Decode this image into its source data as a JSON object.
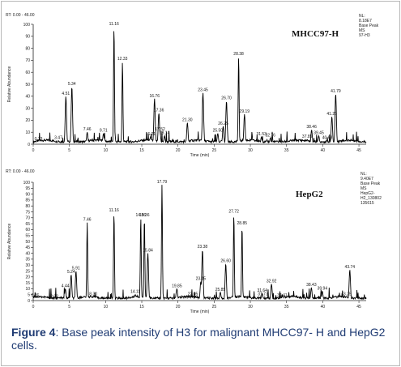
{
  "chart_data": [
    {
      "type": "line",
      "title": "MHCC97-H",
      "range_label": "RT: 0.00 - 46.00",
      "meta": [
        "NL:",
        "8.18E7",
        "Base Peak",
        "MS",
        "97-H3"
      ],
      "xlabel": "Time (min)",
      "ylabel": "Relative Abundance",
      "xlim": [
        0,
        46
      ],
      "ylim": [
        0,
        100
      ],
      "xticks": [
        0,
        5,
        10,
        15,
        20,
        25,
        30,
        35,
        40,
        45
      ],
      "yticks": [
        0,
        10,
        20,
        30,
        40,
        50,
        60,
        70,
        80,
        90,
        100
      ],
      "peaks": [
        {
          "x": 0.73,
          "y": 2
        },
        {
          "x": 3.47,
          "y": 3
        },
        {
          "x": 4.51,
          "y": 40
        },
        {
          "x": 5.34,
          "y": 48
        },
        {
          "x": 7.46,
          "y": 10
        },
        {
          "x": 9.71,
          "y": 9
        },
        {
          "x": 11.16,
          "y": 98
        },
        {
          "x": 12.33,
          "y": 69
        },
        {
          "x": 16.21,
          "y": 6
        },
        {
          "x": 16.76,
          "y": 38
        },
        {
          "x": 17.36,
          "y": 26
        },
        {
          "x": 17.52,
          "y": 10
        },
        {
          "x": 18.14,
          "y": 7
        },
        {
          "x": 21.3,
          "y": 18
        },
        {
          "x": 23.45,
          "y": 43
        },
        {
          "x": 25.5,
          "y": 9
        },
        {
          "x": 26.25,
          "y": 15
        },
        {
          "x": 26.7,
          "y": 36
        },
        {
          "x": 28.38,
          "y": 73
        },
        {
          "x": 29.19,
          "y": 25
        },
        {
          "x": 31.53,
          "y": 6
        },
        {
          "x": 32.76,
          "y": 5
        },
        {
          "x": 37.85,
          "y": 4
        },
        {
          "x": 38.46,
          "y": 12
        },
        {
          "x": 39.45,
          "y": 7
        },
        {
          "x": 40.63,
          "y": 3
        },
        {
          "x": 41.26,
          "y": 23
        },
        {
          "x": 41.79,
          "y": 42
        }
      ]
    },
    {
      "type": "line",
      "title": "HepG2",
      "range_label": "RT: 0.00 - 46.00",
      "meta": [
        "NL:",
        "9.40E7",
        "Base Peak",
        "MS",
        "HepG2-",
        "H2_130802",
        "135615"
      ],
      "xlabel": "Time (min)",
      "ylabel": "Relative Abundance",
      "xlim": [
        0,
        46
      ],
      "ylim": [
        0,
        100
      ],
      "xticks": [
        0,
        5,
        10,
        15,
        20,
        25,
        30,
        35,
        40,
        45
      ],
      "yticks": [
        0,
        5,
        10,
        15,
        20,
        25,
        30,
        35,
        40,
        45,
        50,
        55,
        60,
        65,
        70,
        75,
        80,
        85,
        90,
        95,
        100
      ],
      "peaks": [
        {
          "x": 0.26,
          "y": 2
        },
        {
          "x": 2.92,
          "y": 1
        },
        {
          "x": 4.44,
          "y": 10
        },
        {
          "x": 5.24,
          "y": 22
        },
        {
          "x": 5.91,
          "y": 25
        },
        {
          "x": 7.46,
          "y": 66
        },
        {
          "x": 8.3,
          "y": 3
        },
        {
          "x": 11.16,
          "y": 74
        },
        {
          "x": 14.11,
          "y": 5
        },
        {
          "x": 14.86,
          "y": 70
        },
        {
          "x": 15.36,
          "y": 70
        },
        {
          "x": 15.84,
          "y": 40
        },
        {
          "x": 17.79,
          "y": 98
        },
        {
          "x": 19.85,
          "y": 10
        },
        {
          "x": 22.05,
          "y": 3
        },
        {
          "x": 23.15,
          "y": 16
        },
        {
          "x": 23.38,
          "y": 43
        },
        {
          "x": 25.85,
          "y": 7
        },
        {
          "x": 26.6,
          "y": 31
        },
        {
          "x": 27.72,
          "y": 73
        },
        {
          "x": 28.85,
          "y": 63
        },
        {
          "x": 31.64,
          "y": 6
        },
        {
          "x": 31.73,
          "y": 3
        },
        {
          "x": 32.92,
          "y": 14
        },
        {
          "x": 34.41,
          "y": 2
        },
        {
          "x": 38.43,
          "y": 11
        },
        {
          "x": 39.94,
          "y": 8
        },
        {
          "x": 43.25,
          "y": 3
        },
        {
          "x": 43.74,
          "y": 26
        }
      ]
    }
  ],
  "caption": {
    "figure_label": "Figure 4",
    "text": ": Base peak intensity of H3 for malignant MHCC97- H and HepG2 cells."
  },
  "colors": {
    "trace": "#000000",
    "axis": "#222222",
    "caption": "#1f3b73"
  }
}
